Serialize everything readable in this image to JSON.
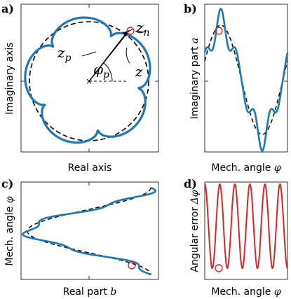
{
  "panels": {
    "a": {
      "label": "a)",
      "xlabel": "Real axis",
      "ylabel": "Imaginary axis",
      "z_n": "z",
      "z_n_sub": "n",
      "z_p": "z",
      "z_p_sub": "p",
      "phi_p": "φ",
      "phi_p_sub": "p",
      "z": "z"
    },
    "b": {
      "label": "b)",
      "xlabel_text": "Mech. angle ",
      "xlabel_math": "φ",
      "ylabel_text": "Imaginary part ",
      "ylabel_math": "a"
    },
    "c": {
      "label": "c)",
      "xlabel_text": "Real part ",
      "xlabel_math": "b",
      "ylabel_text": "Mech. angle ",
      "ylabel_math": "φ"
    },
    "d": {
      "label": "d)",
      "xlabel_text": "Mech. angle ",
      "xlabel_math": "φ",
      "ylabel_text": "Angular error ",
      "ylabel_math": "Δφ"
    }
  },
  "colors": {
    "blue": "#1f77b4",
    "red": "#d62728",
    "dashed": "#000000"
  }
}
